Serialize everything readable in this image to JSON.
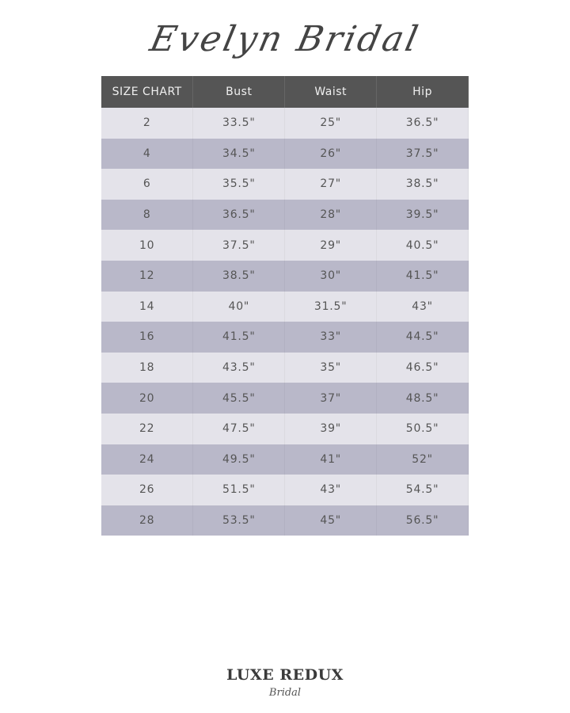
{
  "title": "Evelyn Bridal",
  "table": {
    "headers": [
      "SIZE CHART",
      "Bust",
      "Waist",
      "Hip"
    ],
    "rows": [
      [
        "2",
        "33.5\"",
        "25\"",
        "36.5\""
      ],
      [
        "4",
        "34.5\"",
        "26\"",
        "37.5\""
      ],
      [
        "6",
        "35.5\"",
        "27\"",
        "38.5\""
      ],
      [
        "8",
        "36.5\"",
        "28\"",
        "39.5\""
      ],
      [
        "10",
        "37.5\"",
        "29\"",
        "40.5\""
      ],
      [
        "12",
        "38.5\"",
        "30\"",
        "41.5\""
      ],
      [
        "14",
        "40\"",
        "31.5\"",
        "43\""
      ],
      [
        "16",
        "41.5\"",
        "33\"",
        "44.5\""
      ],
      [
        "18",
        "43.5\"",
        "35\"",
        "46.5\""
      ],
      [
        "20",
        "45.5\"",
        "37\"",
        "48.5\""
      ],
      [
        "22",
        "47.5\"",
        "39\"",
        "50.5\""
      ],
      [
        "24",
        "49.5\"",
        "41\"",
        "52\""
      ],
      [
        "26",
        "51.5\"",
        "43\"",
        "54.5\""
      ],
      [
        "28",
        "53.5\"",
        "45\"",
        "56.5\""
      ]
    ]
  },
  "logo": {
    "main": "LUXE REDUX",
    "sub": "Bridal"
  },
  "colors": {
    "header": "#555555",
    "row_light": "#e4e3ea",
    "row_dark": "#b9b8c9"
  }
}
